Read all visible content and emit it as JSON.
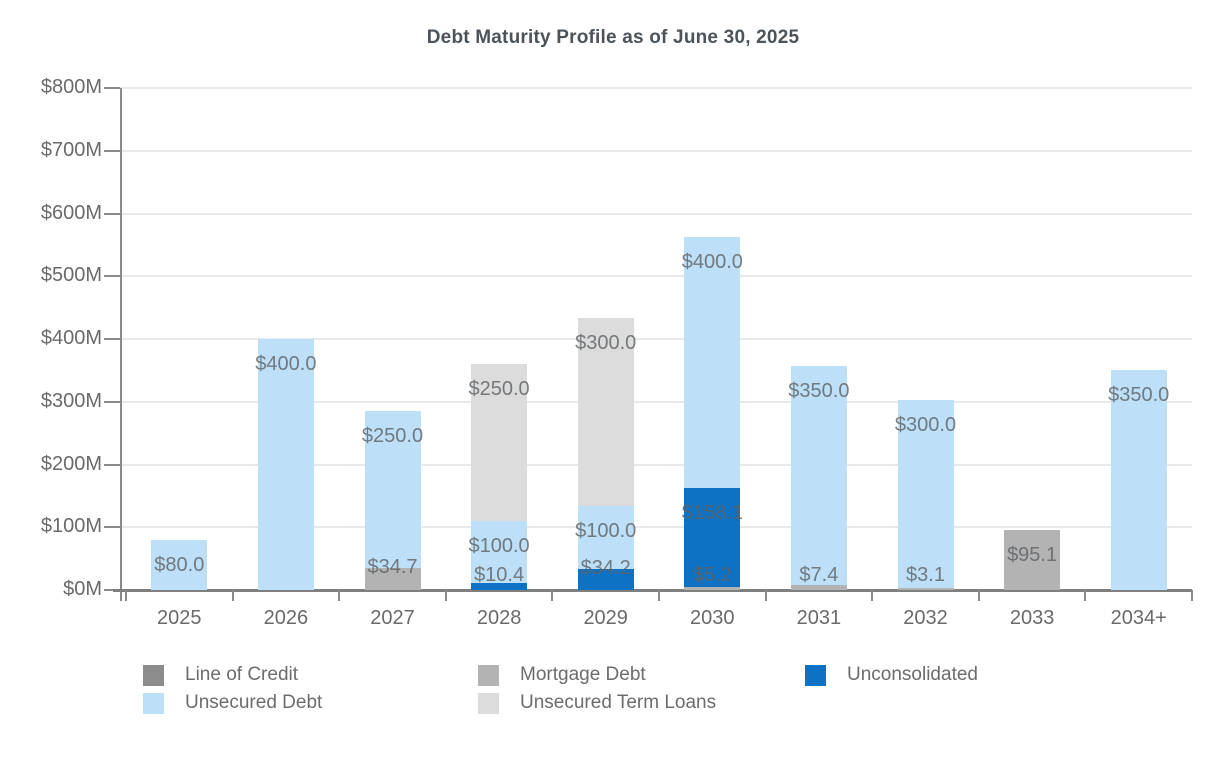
{
  "title": "Debt Maturity Profile as of June 30, 2025",
  "chart_data": {
    "type": "bar",
    "stacked": true,
    "title": "Debt Maturity Profile as of June 30, 2025",
    "categories": [
      "2025",
      "2026",
      "2027",
      "2028",
      "2029",
      "2030",
      "2031",
      "2032",
      "2033",
      "2034+"
    ],
    "series": [
      {
        "name": "Mortgage Debt",
        "color": "#B3B3B3",
        "values": [
          0,
          0,
          34.7,
          0,
          0,
          5.2,
          7.4,
          3.1,
          95.1,
          0
        ],
        "labels": [
          "",
          "",
          "$34.7",
          "",
          "",
          "$5.2",
          "$7.4",
          "$3.1",
          "$95.1",
          ""
        ]
      },
      {
        "name": "Unconsolidated",
        "color": "#0E72C4",
        "values": [
          0,
          0,
          0,
          10.4,
          34.2,
          158.1,
          0,
          0,
          0,
          0
        ],
        "labels": [
          "",
          "",
          "",
          "$10.4",
          "$34.2",
          "$158.1",
          "",
          "",
          "",
          ""
        ]
      },
      {
        "name": "Unsecured Debt",
        "color": "#BDDFF7",
        "values": [
          80.0,
          400.0,
          250.0,
          100.0,
          100.0,
          400.0,
          350.0,
          300.0,
          0,
          350.0
        ],
        "labels": [
          "$80.0",
          "$400.0",
          "$250.0",
          "$100.0",
          "$100.0",
          "$400.0",
          "$350.0",
          "$300.0",
          "",
          "$350.0"
        ]
      },
      {
        "name": "Unsecured Term Loans",
        "color": "#DCDCDC",
        "values": [
          0,
          0,
          0,
          250.0,
          300.0,
          0,
          0,
          0,
          0,
          0
        ],
        "labels": [
          "",
          "",
          "",
          "$250.0",
          "$300.0",
          "",
          "",
          "",
          "",
          ""
        ]
      },
      {
        "name": "Line of Credit",
        "color": "#8C8C8C",
        "values": [
          0,
          0,
          0,
          0,
          0,
          0,
          0,
          0,
          0,
          0
        ],
        "labels": [
          "",
          "",
          "",
          "",
          "",
          "",
          "",
          "",
          "",
          ""
        ]
      }
    ],
    "ylim": [
      0,
      800
    ],
    "ytick_step": 100,
    "ytick_labels": [
      "$0M",
      "$100M",
      "$200M",
      "$300M",
      "$400M",
      "$500M",
      "$600M",
      "$700M",
      "$800M"
    ],
    "xlabel": "",
    "ylabel": "",
    "grid": true,
    "legend_position": "bottom",
    "data_label_prefix": "$"
  },
  "legend": {
    "items": [
      {
        "label": "Line of Credit",
        "color": "#8C8C8C",
        "col": 0,
        "row": 0
      },
      {
        "label": "Unsecured Debt",
        "color": "#BDDFF7",
        "col": 0,
        "row": 1
      },
      {
        "label": "Mortgage Debt",
        "color": "#B3B3B3",
        "col": 1,
        "row": 0
      },
      {
        "label": "Unsecured Term Loans",
        "color": "#DCDCDC",
        "col": 1,
        "row": 1
      },
      {
        "label": "Unconsolidated",
        "color": "#0E72C4",
        "col": 2,
        "row": 0
      }
    ]
  },
  "colors": {
    "title": "#4C5359",
    "axis_line": "#8A8A8A",
    "grid_line": "#E9E9E9",
    "tick_label": "#6A6A6A",
    "data_label": "#5E6366",
    "background": "#FFFFFF"
  }
}
